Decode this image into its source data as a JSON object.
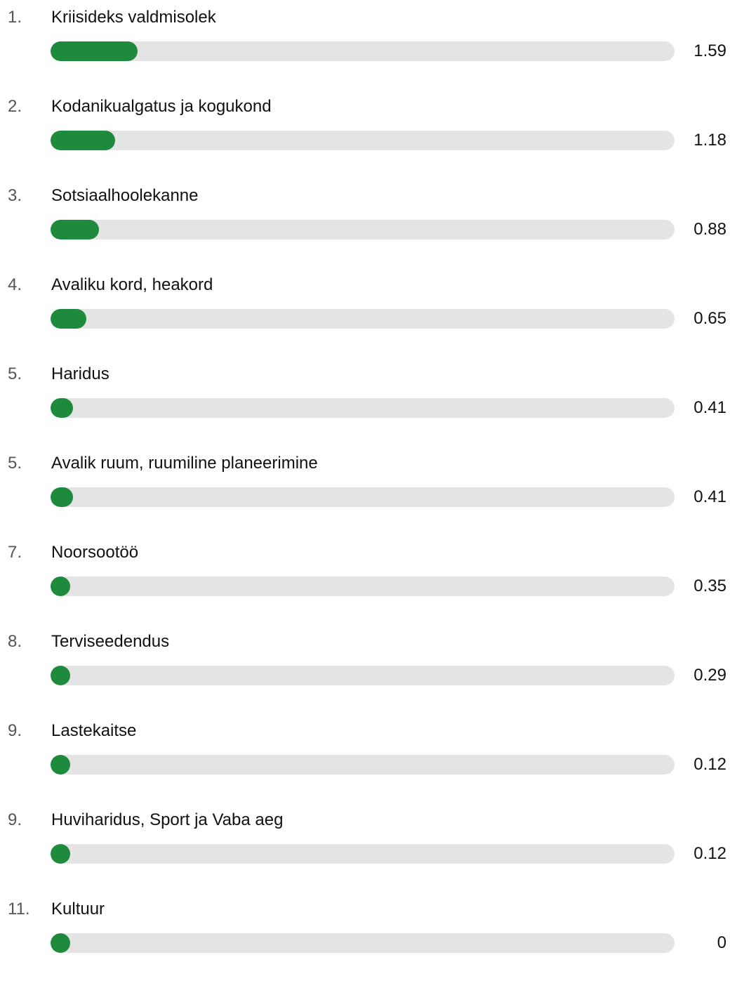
{
  "chart_data": {
    "type": "bar",
    "orientation": "horizontal",
    "bar_color": "#1e8a3c",
    "track_color": "#e4e4e4",
    "xlim": [
      0,
      11.4
    ],
    "items": [
      {
        "rank": "1.",
        "label": "Kriisideks valdmisolek",
        "value": 1.59,
        "display": "1.59"
      },
      {
        "rank": "2.",
        "label": "Kodanikualgatus ja kogukond",
        "value": 1.18,
        "display": "1.18"
      },
      {
        "rank": "3.",
        "label": "Sotsiaalhoolekanne",
        "value": 0.88,
        "display": "0.88"
      },
      {
        "rank": "4.",
        "label": "Avaliku kord, heakord",
        "value": 0.65,
        "display": "0.65"
      },
      {
        "rank": "5.",
        "label": "Haridus",
        "value": 0.41,
        "display": "0.41"
      },
      {
        "rank": "5.",
        "label": "Avalik ruum, ruumiline planeerimine",
        "value": 0.41,
        "display": "0.41"
      },
      {
        "rank": "7.",
        "label": "Noorsootöö",
        "value": 0.35,
        "display": "0.35"
      },
      {
        "rank": "8.",
        "label": "Terviseedendus",
        "value": 0.29,
        "display": "0.29"
      },
      {
        "rank": "9.",
        "label": "Lastekaitse",
        "value": 0.12,
        "display": "0.12"
      },
      {
        "rank": "9.",
        "label": "Huviharidus, Sport ja Vaba aeg",
        "value": 0.12,
        "display": "0.12"
      },
      {
        "rank": "11.",
        "label": "Kultuur",
        "value": 0,
        "display": "0"
      }
    ]
  }
}
